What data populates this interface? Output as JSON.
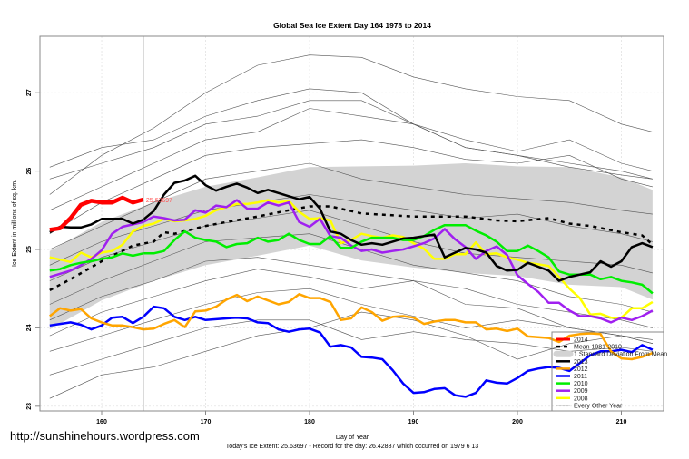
{
  "chart_data": {
    "type": "line",
    "title": "Global Sea Ice Extent Day 164 1978 to 2014",
    "xlabel": "Day of Year",
    "ylabel": "Ice Extent in millions of sq. km.",
    "subtitle": "Today's Ice Extent: 25.63697  - Record for the day: 26.42887 which occurred on 1979 6 13",
    "xlim": [
      154.06,
      214.06
    ],
    "ylim": [
      22.94,
      27.72
    ],
    "xticks": [
      160,
      170,
      180,
      190,
      200,
      210
    ],
    "yticks": [
      23,
      24,
      25,
      26,
      27
    ],
    "grid": true,
    "legend_position": "bottom-right",
    "current_day": 164,
    "current_value_label": "25.63697",
    "colors": {
      "y2014": "#ff0000",
      "mean": "#000000",
      "sd": "#d3d3d3",
      "y2013": "#000000",
      "y2012": "#ffa500",
      "y2011": "#0000ff",
      "y2010": "#00ee00",
      "y2009": "#a020f0",
      "y2008": "#ffff00",
      "other": "#555555"
    },
    "sd_band": {
      "label": "1 Standard Deviation From Mean",
      "x": [
        155,
        160,
        165,
        170,
        175,
        180,
        185,
        190,
        195,
        200,
        205,
        210,
        213
      ],
      "upper": [
        24.98,
        25.35,
        25.6,
        25.8,
        25.92,
        26.05,
        26.06,
        26.07,
        26.1,
        26.06,
        26.05,
        25.92,
        25.76
      ],
      "lower": [
        23.98,
        24.35,
        24.6,
        24.8,
        24.92,
        25.05,
        24.86,
        24.77,
        24.7,
        24.66,
        24.55,
        24.52,
        24.36
      ]
    },
    "mean": {
      "label": "Mean 1981-2010",
      "x": [
        155,
        157,
        160,
        163,
        165,
        166,
        167,
        170,
        172,
        175,
        178,
        180,
        182,
        185,
        190,
        195,
        198,
        200,
        203,
        205,
        207,
        210,
        212,
        213
      ],
      "values": [
        24.48,
        24.62,
        24.85,
        25.05,
        25.1,
        25.22,
        25.2,
        25.3,
        25.35,
        25.42,
        25.5,
        25.55,
        25.55,
        25.46,
        25.42,
        25.42,
        25.37,
        25.36,
        25.4,
        25.33,
        25.3,
        25.22,
        25.18,
        25.06
      ]
    },
    "other_years": {
      "label": "Every Other Year",
      "x": [
        155,
        160,
        165,
        170,
        175,
        180,
        185,
        190,
        195,
        200,
        205,
        210,
        213
      ],
      "series": [
        [
          25.7,
          26.2,
          26.55,
          27.0,
          27.35,
          27.48,
          27.45,
          27.2,
          27.05,
          26.95,
          26.9,
          26.6,
          26.5
        ],
        [
          26.05,
          26.3,
          26.4,
          26.7,
          26.9,
          27.05,
          27.0,
          26.6,
          26.4,
          26.25,
          26.4,
          26.1,
          26.0
        ],
        [
          25.5,
          25.8,
          26.1,
          26.4,
          26.5,
          26.8,
          26.7,
          26.6,
          26.3,
          26.2,
          26.1,
          26.0,
          25.9
        ],
        [
          25.2,
          25.6,
          25.9,
          26.2,
          26.3,
          26.35,
          26.4,
          26.3,
          26.15,
          26.1,
          26.2,
          25.9,
          25.8
        ],
        [
          25.0,
          25.3,
          25.6,
          25.9,
          26.0,
          26.1,
          25.9,
          25.8,
          25.7,
          25.65,
          25.6,
          25.5,
          25.45
        ],
        [
          24.8,
          25.1,
          25.3,
          25.5,
          25.6,
          25.7,
          25.6,
          25.5,
          25.4,
          25.45,
          25.3,
          25.2,
          25.1
        ],
        [
          24.6,
          24.9,
          25.1,
          25.3,
          25.4,
          25.5,
          25.3,
          25.1,
          24.95,
          24.9,
          24.85,
          24.8,
          24.7
        ],
        [
          24.3,
          24.6,
          24.85,
          25.1,
          25.15,
          25.2,
          25.0,
          24.8,
          24.7,
          24.6,
          24.4,
          24.3,
          24.2
        ],
        [
          24.1,
          24.4,
          24.6,
          24.85,
          24.9,
          24.8,
          24.7,
          24.6,
          24.5,
          24.3,
          24.2,
          24.1,
          24.0
        ],
        [
          23.9,
          24.2,
          24.4,
          24.6,
          24.75,
          24.65,
          24.5,
          24.6,
          24.3,
          24.25,
          24.0,
          23.9,
          23.8
        ],
        [
          23.7,
          23.9,
          24.1,
          24.3,
          24.45,
          24.5,
          24.3,
          24.15,
          24.0,
          24.1,
          24.0,
          23.9,
          23.85
        ],
        [
          23.4,
          23.6,
          23.8,
          24.0,
          24.1,
          24.1,
          23.85,
          23.95,
          23.85,
          23.8,
          23.7,
          23.75,
          23.7
        ],
        [
          23.1,
          23.4,
          23.5,
          23.7,
          23.9,
          24.0,
          24.2,
          24.1,
          23.9,
          23.6,
          23.8,
          23.9,
          23.8
        ],
        [
          25.9,
          26.1,
          26.3,
          26.6,
          26.7,
          26.9,
          26.9,
          26.6,
          26.3,
          26.2,
          26.05,
          25.95,
          25.9
        ]
      ]
    },
    "series": [
      {
        "name": "2008",
        "color_key": "y2008",
        "start": 155,
        "values": [
          24.9,
          24.87,
          24.84,
          24.96,
          24.9,
          24.96,
          24.98,
          25.06,
          25.23,
          25.3,
          25.33,
          25.39,
          25.36,
          25.37,
          25.39,
          25.43,
          25.5,
          25.54,
          25.58,
          25.58,
          25.6,
          25.63,
          25.6,
          25.62,
          25.48,
          25.39,
          25.4,
          25.37,
          25.08,
          25.12,
          25.2,
          25.17,
          25.15,
          25.18,
          25.16,
          25.08,
          25.01,
          24.88,
          24.88,
          24.94,
          24.94,
          25.09,
          24.94,
          24.95,
          24.9,
          24.87,
          24.83,
          24.81,
          24.79,
          24.65,
          24.5,
          24.38,
          24.17,
          24.18,
          24.13,
          24.13,
          24.25,
          24.25,
          24.33
        ]
      },
      {
        "name": "2009",
        "color_key": "y2009",
        "start": 155,
        "values": [
          24.65,
          24.69,
          24.73,
          24.8,
          24.88,
          24.99,
          25.2,
          25.29,
          25.32,
          25.35,
          25.42,
          25.4,
          25.37,
          25.38,
          25.5,
          25.47,
          25.56,
          25.54,
          25.63,
          25.52,
          25.52,
          25.6,
          25.56,
          25.6,
          25.35,
          25.29,
          25.39,
          25.17,
          25.15,
          25.05,
          24.98,
          25.0,
          24.96,
          24.98,
          25.0,
          25.04,
          25.08,
          25.14,
          25.26,
          25.13,
          25.03,
          24.88,
          24.98,
          25.04,
          24.93,
          24.67,
          24.56,
          24.46,
          24.32,
          24.32,
          24.22,
          24.15,
          24.15,
          24.12,
          24.07,
          24.13,
          24.1,
          24.15,
          24.22
        ]
      },
      {
        "name": "2010",
        "color_key": "y2010",
        "start": 155,
        "values": [
          24.73,
          24.75,
          24.8,
          24.83,
          24.85,
          24.88,
          24.9,
          24.95,
          24.92,
          24.95,
          24.95,
          24.98,
          25.12,
          25.23,
          25.15,
          25.12,
          25.1,
          25.03,
          25.07,
          25.08,
          25.15,
          25.1,
          25.12,
          25.2,
          25.12,
          25.07,
          25.07,
          25.17,
          25.02,
          25.02,
          25.1,
          25.15,
          25.15,
          25.15,
          25.12,
          25.12,
          25.17,
          25.25,
          25.31,
          25.31,
          25.31,
          25.24,
          25.18,
          25.1,
          24.98,
          24.98,
          25.05,
          24.98,
          24.9,
          24.72,
          24.68,
          24.68,
          24.68,
          24.62,
          24.65,
          24.6,
          24.58,
          24.55,
          24.44
        ]
      },
      {
        "name": "2011",
        "color_key": "y2011",
        "start": 155,
        "values": [
          24.03,
          24.05,
          24.07,
          24.04,
          23.98,
          24.03,
          24.13,
          24.14,
          24.06,
          24.14,
          24.27,
          24.25,
          24.14,
          24.1,
          24.14,
          24.1,
          24.11,
          24.12,
          24.13,
          24.12,
          24.07,
          24.06,
          23.98,
          23.95,
          23.98,
          23.99,
          23.94,
          23.76,
          23.78,
          23.75,
          23.63,
          23.62,
          23.6,
          23.46,
          23.29,
          23.17,
          23.18,
          23.22,
          23.23,
          23.14,
          23.12,
          23.17,
          23.33,
          23.3,
          23.29,
          23.36,
          23.45,
          23.48,
          23.5,
          23.49,
          23.45,
          23.55,
          23.65,
          23.7,
          23.7,
          23.72,
          23.69,
          23.78,
          23.72
        ]
      },
      {
        "name": "2012",
        "color_key": "y2012",
        "start": 155,
        "values": [
          24.15,
          24.25,
          24.22,
          24.24,
          24.12,
          24.07,
          24.03,
          24.03,
          24.01,
          23.98,
          23.99,
          24.05,
          24.1,
          24.01,
          24.21,
          24.22,
          24.27,
          24.36,
          24.42,
          24.34,
          24.4,
          24.35,
          24.3,
          24.33,
          24.43,
          24.38,
          24.38,
          24.33,
          24.1,
          24.12,
          24.26,
          24.2,
          24.09,
          24.14,
          24.15,
          24.13,
          24.05,
          24.08,
          24.1,
          24.1,
          24.07,
          24.07,
          23.98,
          23.99,
          23.96,
          23.99,
          23.89,
          23.88,
          23.87,
          23.82,
          23.9,
          23.92,
          23.93,
          23.92,
          23.7,
          23.61,
          23.6,
          23.63,
          23.68
        ]
      },
      {
        "name": "2013",
        "color_key": "y2013",
        "start": 155,
        "values": [
          25.22,
          25.29,
          25.28,
          25.28,
          25.32,
          25.39,
          25.39,
          25.39,
          25.33,
          25.38,
          25.49,
          25.7,
          25.85,
          25.88,
          25.94,
          25.82,
          25.75,
          25.8,
          25.84,
          25.79,
          25.72,
          25.76,
          25.72,
          25.68,
          25.64,
          25.67,
          25.52,
          25.23,
          25.2,
          25.12,
          25.06,
          25.08,
          25.06,
          25.1,
          25.14,
          25.15,
          25.17,
          25.19,
          24.9,
          24.96,
          25.02,
          25.0,
          24.96,
          24.79,
          24.73,
          24.74,
          24.83,
          24.78,
          24.73,
          24.6,
          24.65,
          24.68,
          24.71,
          24.85,
          24.78,
          24.85,
          25.03,
          25.08,
          25.03
        ]
      },
      {
        "name": "2014",
        "color_key": "y2014",
        "start": 155,
        "values": [
          25.25,
          25.27,
          25.4,
          25.57,
          25.62,
          25.6,
          25.6,
          25.66,
          25.6,
          25.637
        ]
      }
    ],
    "legend": [
      "2014",
      "Mean 1981-2010",
      "1 Standard Deviation From Mean",
      "2013",
      "2012",
      "2011",
      "2010",
      "2009",
      "2008",
      "Every Other Year"
    ]
  },
  "footer": {
    "url": "http://sunshinehours.wordpress.com"
  }
}
